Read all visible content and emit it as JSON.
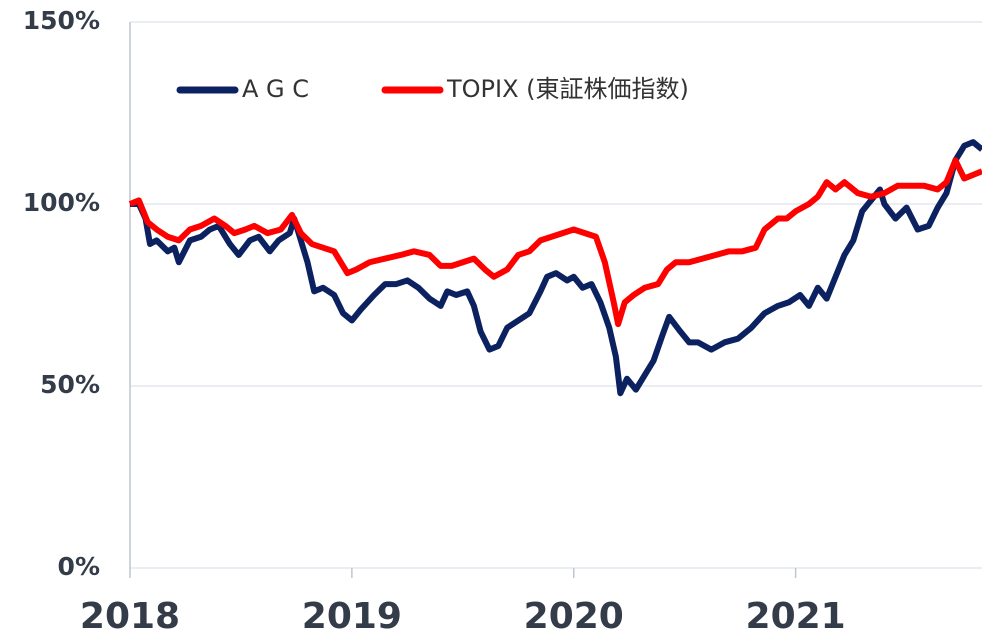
{
  "chart_data": {
    "type": "line",
    "xlim": [
      2018,
      2021.84
    ],
    "xticks": [
      2018,
      2019,
      2020,
      2021
    ],
    "ylim": [
      0,
      150
    ],
    "yticks": [
      {
        "value": 0,
        "label": "0%"
      },
      {
        "value": 50,
        "label": "50%"
      },
      {
        "value": 100,
        "label": "100%"
      },
      {
        "value": 150,
        "label": "150%"
      }
    ],
    "grid": true,
    "legend": "top",
    "series": [
      {
        "name": "A G C",
        "color": "#0c2260",
        "x": [
          2018.0,
          2018.04,
          2018.07,
          2018.09,
          2018.12,
          2018.17,
          2018.2,
          2018.22,
          2018.27,
          2018.32,
          2018.36,
          2018.4,
          2018.45,
          2018.49,
          2018.54,
          2018.58,
          2018.63,
          2018.67,
          2018.72,
          2018.74,
          2018.77,
          2018.8,
          2018.83,
          2018.87,
          2018.92,
          2018.96,
          2019.0,
          2019.04,
          2019.1,
          2019.15,
          2019.2,
          2019.25,
          2019.3,
          2019.35,
          2019.4,
          2019.43,
          2019.47,
          2019.52,
          2019.55,
          2019.58,
          2019.62,
          2019.66,
          2019.7,
          2019.75,
          2019.8,
          2019.85,
          2019.88,
          2019.92,
          2019.97,
          2020.0,
          2020.04,
          2020.08,
          2020.12,
          2020.16,
          2020.19,
          2020.21,
          2020.24,
          2020.28,
          2020.32,
          2020.36,
          2020.4,
          2020.43,
          2020.48,
          2020.52,
          2020.56,
          2020.62,
          2020.68,
          2020.74,
          2020.8,
          2020.86,
          2020.92,
          2020.97,
          2021.02,
          2021.06,
          2021.1,
          2021.14,
          2021.18,
          2021.22,
          2021.26,
          2021.3,
          2021.34,
          2021.38,
          2021.4,
          2021.45,
          2021.5,
          2021.55,
          2021.6,
          2021.64,
          2021.68,
          2021.72,
          2021.76,
          2021.8,
          2021.84
        ],
        "values": [
          100,
          100,
          96,
          89,
          90,
          87,
          88,
          84,
          90,
          91,
          93,
          94,
          89,
          86,
          90,
          91,
          87,
          90,
          92,
          96,
          90,
          84,
          76,
          77,
          75,
          70,
          68,
          71,
          75,
          78,
          78,
          79,
          77,
          74,
          72,
          76,
          75,
          76,
          72,
          65,
          60,
          61,
          66,
          68,
          70,
          76,
          80,
          81,
          79,
          80,
          77,
          78,
          73,
          66,
          58,
          48,
          52,
          49,
          53,
          57,
          64,
          69,
          65,
          62,
          62,
          60,
          62,
          63,
          66,
          70,
          72,
          73,
          75,
          72,
          77,
          74,
          80,
          86,
          90,
          98,
          101,
          104,
          100,
          96,
          99,
          93,
          94,
          99,
          103,
          112,
          116,
          117,
          115
        ]
      },
      {
        "name": "TOPIX (東証株価指数)",
        "color": "#ff0000",
        "x": [
          2018.0,
          2018.04,
          2018.08,
          2018.12,
          2018.17,
          2018.22,
          2018.27,
          2018.32,
          2018.38,
          2018.43,
          2018.47,
          2018.52,
          2018.56,
          2018.62,
          2018.68,
          2018.73,
          2018.77,
          2018.82,
          2018.87,
          2018.92,
          2018.98,
          2019.02,
          2019.08,
          2019.15,
          2019.22,
          2019.28,
          2019.35,
          2019.4,
          2019.45,
          2019.5,
          2019.55,
          2019.6,
          2019.64,
          2019.7,
          2019.75,
          2019.8,
          2019.85,
          2019.9,
          2019.95,
          2020.0,
          2020.05,
          2020.1,
          2020.14,
          2020.18,
          2020.2,
          2020.23,
          2020.27,
          2020.32,
          2020.38,
          2020.42,
          2020.46,
          2020.52,
          2020.58,
          2020.64,
          2020.7,
          2020.76,
          2020.82,
          2020.86,
          2020.92,
          2020.96,
          2021.0,
          2021.06,
          2021.1,
          2021.14,
          2021.18,
          2021.22,
          2021.28,
          2021.34,
          2021.4,
          2021.46,
          2021.52,
          2021.58,
          2021.64,
          2021.68,
          2021.72,
          2021.76,
          2021.8,
          2021.84
        ],
        "values": [
          100,
          101,
          95,
          93,
          91,
          90,
          93,
          94,
          96,
          94,
          92,
          93,
          94,
          92,
          93,
          97,
          92,
          89,
          88,
          87,
          81,
          82,
          84,
          85,
          86,
          87,
          86,
          83,
          83,
          84,
          85,
          82,
          80,
          82,
          86,
          87,
          90,
          91,
          92,
          93,
          92,
          91,
          84,
          73,
          67,
          73,
          75,
          77,
          78,
          82,
          84,
          84,
          85,
          86,
          87,
          87,
          88,
          93,
          96,
          96,
          98,
          100,
          102,
          106,
          104,
          106,
          103,
          102,
          103,
          105,
          105,
          105,
          104,
          106,
          112,
          107,
          108,
          109
        ]
      }
    ]
  }
}
